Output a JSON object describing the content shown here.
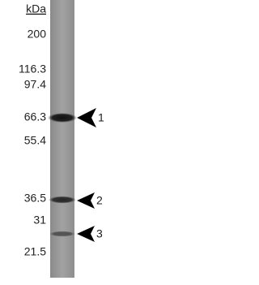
{
  "unit": "kDa",
  "markers": [
    "200",
    "116.3",
    "97.4",
    "66.3",
    "55.4",
    "36.5",
    "31",
    "21.5"
  ],
  "bands": [
    "1",
    "2",
    "3"
  ]
}
